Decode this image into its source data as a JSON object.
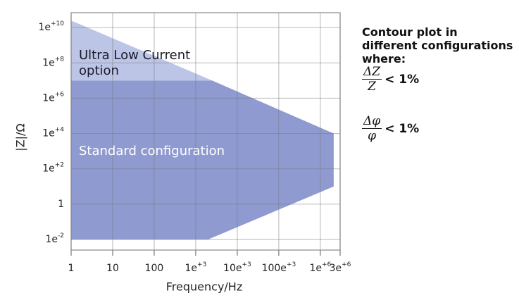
{
  "chart_data": {
    "type": "area",
    "x_label": "Frequency/Hz",
    "y_label": "|Z|/Ω",
    "log_x": true,
    "log_y": true,
    "grid": true,
    "xlim": [
      1,
      3000000
    ],
    "ylim": [
      0.0025,
      70000000000
    ],
    "xticks": [
      1,
      10,
      100,
      {
        "value": 1000,
        "label": "1e+3"
      },
      {
        "value": 10000,
        "label": "10e+3"
      },
      {
        "value": 100000,
        "label": "100e+3"
      },
      {
        "value": 1000000,
        "label": "1e+6"
      },
      {
        "value": 3000000,
        "label": "3e+6"
      }
    ],
    "yticks": [
      {
        "value": 0.01,
        "label": "1e-2"
      },
      1,
      {
        "value": 100,
        "label": "1e+2"
      },
      {
        "value": 10000,
        "label": "1e+4"
      },
      {
        "value": 1000000,
        "label": "1e+6"
      },
      {
        "value": 100000000,
        "label": "1e+8"
      },
      {
        "value": 10000000000,
        "label": "1e+10"
      }
    ],
    "series": [
      {
        "name": "Ultra Low Current option",
        "color": "#bcc5e6",
        "x": [
          1,
          1,
          2500
        ],
        "values": [
          10000000,
          25000000000,
          10000000
        ]
      },
      {
        "name": "Standard configuration",
        "color": "#8f9bd0",
        "x": [
          1,
          2500,
          2100000,
          2100000,
          2000,
          1
        ],
        "values": [
          10000000,
          10000000,
          10000,
          10,
          0.01,
          0.01
        ]
      }
    ],
    "annotation": {
      "title": "Contour plot in different configurations where:",
      "formulas": [
        {
          "numerator": "ΔZ",
          "denominator": "Z",
          "relation": "< 1%"
        },
        {
          "numerator": "Δφ",
          "denominator": "φ",
          "relation": "< 1%"
        }
      ]
    }
  }
}
